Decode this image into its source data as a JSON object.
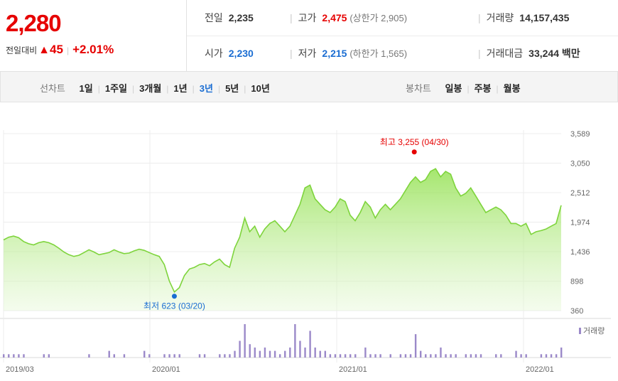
{
  "quote": {
    "price": "2,280",
    "change_label": "전일대비",
    "change_arrow": "▲",
    "change_amount": "45",
    "change_pct": "+2.01%",
    "prev_label": "전일",
    "prev_value": "2,235",
    "high_label": "고가",
    "high_value": "2,475",
    "upper_limit": "(상한가 2,905)",
    "volume_label": "거래량",
    "volume_value": "14,157,435",
    "open_label": "시가",
    "open_value": "2,230",
    "low_label": "저가",
    "low_value": "2,215",
    "lower_limit": "(하한가 1,565)",
    "amount_label": "거래대금",
    "amount_value": "33,244 백만"
  },
  "tabs": {
    "line_title": "선차트",
    "line_items": [
      "1일",
      "1주일",
      "3개월",
      "1년",
      "3년",
      "5년",
      "10년"
    ],
    "line_active": 4,
    "candle_title": "봉차트",
    "candle_items": [
      "일봉",
      "주봉",
      "월봉"
    ]
  },
  "colors": {
    "up": "#e60000",
    "down": "#1a6dd2",
    "line": "#7ed43c",
    "volume": "#9b89c9"
  },
  "chart_data": {
    "type": "area",
    "x_ticks": [
      "2019/03",
      "2020/01",
      "2021/01",
      "2022/01"
    ],
    "y_ticks": [
      "3,589",
      "3,050",
      "2,512",
      "1,974",
      "1,436",
      "898",
      "360"
    ],
    "ylim": [
      360,
      3589
    ],
    "price": [
      1650,
      1700,
      1720,
      1690,
      1620,
      1580,
      1560,
      1600,
      1620,
      1600,
      1560,
      1500,
      1430,
      1380,
      1350,
      1370,
      1420,
      1470,
      1430,
      1380,
      1400,
      1420,
      1470,
      1430,
      1400,
      1410,
      1450,
      1480,
      1460,
      1420,
      1380,
      1350,
      1200,
      900,
      700,
      780,
      1000,
      1120,
      1150,
      1200,
      1220,
      1180,
      1250,
      1300,
      1200,
      1150,
      1500,
      1700,
      2050,
      1800,
      1900,
      1700,
      1850,
      1950,
      2000,
      1900,
      1800,
      1900,
      2100,
      2300,
      2600,
      2650,
      2400,
      2300,
      2200,
      2150,
      2250,
      2400,
      2350,
      2100,
      2000,
      2150,
      2350,
      2250,
      2050,
      2200,
      2300,
      2200,
      2300,
      2400,
      2550,
      2700,
      2800,
      2700,
      2750,
      2900,
      2950,
      2800,
      2900,
      2850,
      2600,
      2450,
      2500,
      2600,
      2450,
      2300,
      2150,
      2200,
      2250,
      2200,
      2100,
      1950,
      1950,
      1900,
      1950,
      1750,
      1800,
      1820,
      1850,
      1900,
      1950,
      2280
    ],
    "volume": [
      1,
      1,
      1,
      1,
      1,
      0,
      0,
      0,
      1,
      1,
      0,
      0,
      0,
      0,
      0,
      0,
      0,
      1,
      0,
      0,
      0,
      2,
      1,
      0,
      1,
      0,
      0,
      0,
      2,
      1,
      0,
      0,
      1,
      1,
      1,
      1,
      0,
      0,
      0,
      1,
      1,
      0,
      0,
      1,
      1,
      1,
      2,
      5,
      10,
      4,
      3,
      2,
      3,
      2,
      2,
      1,
      2,
      3,
      10,
      5,
      3,
      8,
      3,
      2,
      2,
      1,
      1,
      1,
      1,
      1,
      1,
      0,
      3,
      1,
      1,
      1,
      0,
      1,
      0,
      1,
      1,
      1,
      7,
      2,
      1,
      1,
      1,
      3,
      1,
      1,
      1,
      0,
      1,
      1,
      1,
      1,
      0,
      0,
      1,
      1,
      0,
      0,
      2,
      1,
      1,
      0,
      0,
      1,
      1,
      1,
      1,
      3
    ],
    "volume_label": "거래량",
    "max_annotation": "최고 3,255 (04/30)",
    "min_annotation": "최저 623 (03/20)",
    "max_value": 3255,
    "min_value": 623
  }
}
